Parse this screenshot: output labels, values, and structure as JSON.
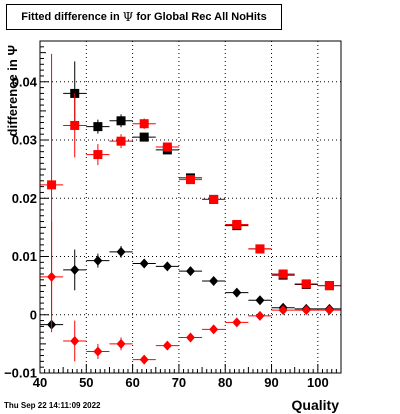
{
  "title": {
    "prefix": "Fitted difference in ",
    "symbol": "Ψ",
    "suffix": " for Global Rec All NoHits"
  },
  "datestamp": "Thu Sep 22 14:11:09 2022",
  "chart_data": {
    "type": "scatter",
    "xlabel": "Quality",
    "ylabel": "difference in Ψ",
    "xlim": [
      40,
      105
    ],
    "ylim": [
      -0.01,
      0.047
    ],
    "xticks": [
      40,
      50,
      60,
      70,
      80,
      90,
      100
    ],
    "yticks": [
      -0.01,
      0,
      0.01,
      0.02,
      0.03,
      0.04
    ],
    "ytick_labels": [
      "−0.01",
      "0",
      "0.01",
      "0.02",
      "0.03",
      "0.04"
    ],
    "grid": true,
    "bin_halfwidth": 2.5,
    "series": [
      {
        "marker": "square",
        "color": "#000000",
        "points": [
          {
            "x": 47.5,
            "y": 0.038,
            "err": 0.0055
          },
          {
            "x": 52.5,
            "y": 0.0323,
            "err": 0.0012
          },
          {
            "x": 57.5,
            "y": 0.0333,
            "err": 0.0011
          },
          {
            "x": 62.5,
            "y": 0.0305,
            "err": 0.0007
          },
          {
            "x": 67.5,
            "y": 0.0283,
            "err": 0.0005
          },
          {
            "x": 72.5,
            "y": 0.0235,
            "err": 0.0004
          },
          {
            "x": 77.5,
            "y": 0.0198,
            "err": 0.0003
          },
          {
            "x": 82.5,
            "y": 0.0153,
            "err": 0.0003
          },
          {
            "x": 87.5,
            "y": 0.0113,
            "err": 0.0002
          },
          {
            "x": 92.5,
            "y": 0.0068,
            "err": 0.0002
          },
          {
            "x": 97.5,
            "y": 0.0052,
            "err": 0.0002
          },
          {
            "x": 102.5,
            "y": 0.005,
            "err": 0.0002
          }
        ]
      },
      {
        "marker": "square",
        "color": "#ff0000",
        "points": [
          {
            "x": 42.5,
            "y": 0.0223,
            "err": 0.0225
          },
          {
            "x": 47.5,
            "y": 0.0325,
            "err": 0.0055
          },
          {
            "x": 52.5,
            "y": 0.0275,
            "err": 0.0018
          },
          {
            "x": 57.5,
            "y": 0.0298,
            "err": 0.0012
          },
          {
            "x": 62.5,
            "y": 0.0328,
            "err": 0.0009
          },
          {
            "x": 67.5,
            "y": 0.0288,
            "err": 0.0006
          },
          {
            "x": 72.5,
            "y": 0.0232,
            "err": 0.0005
          },
          {
            "x": 77.5,
            "y": 0.0198,
            "err": 0.0004
          },
          {
            "x": 82.5,
            "y": 0.0155,
            "err": 0.0003
          },
          {
            "x": 87.5,
            "y": 0.0113,
            "err": 0.0003
          },
          {
            "x": 92.5,
            "y": 0.007,
            "err": 0.0003
          },
          {
            "x": 97.5,
            "y": 0.0053,
            "err": 0.0002
          },
          {
            "x": 102.5,
            "y": 0.005,
            "err": 0.0002
          }
        ]
      },
      {
        "marker": "diamond",
        "color": "#000000",
        "points": [
          {
            "x": 42.5,
            "y": -0.0017,
            "err": 0.0
          },
          {
            "x": 47.5,
            "y": 0.0077,
            "err": 0.0035
          },
          {
            "x": 52.5,
            "y": 0.0093,
            "err": 0.0012
          },
          {
            "x": 57.5,
            "y": 0.0108,
            "err": 0.001
          },
          {
            "x": 62.5,
            "y": 0.0088,
            "err": 0.0006
          },
          {
            "x": 67.5,
            "y": 0.0083,
            "err": 0.0005
          },
          {
            "x": 72.5,
            "y": 0.0075,
            "err": 0.0004
          },
          {
            "x": 77.5,
            "y": 0.0058,
            "err": 0.0003
          },
          {
            "x": 82.5,
            "y": 0.0038,
            "err": 0.0003
          },
          {
            "x": 87.5,
            "y": 0.0025,
            "err": 0.0002
          },
          {
            "x": 92.5,
            "y": 0.0012,
            "err": 0.0002
          },
          {
            "x": 97.5,
            "y": 0.001,
            "err": 0.0002
          },
          {
            "x": 102.5,
            "y": 0.001,
            "err": 0.0002
          }
        ]
      },
      {
        "marker": "diamond",
        "color": "#ff0000",
        "points": [
          {
            "x": 42.5,
            "y": 0.0065,
            "err": 0.0095
          },
          {
            "x": 47.5,
            "y": -0.0045,
            "err": 0.0035
          },
          {
            "x": 52.5,
            "y": -0.0063,
            "err": 0.0013
          },
          {
            "x": 57.5,
            "y": -0.005,
            "err": 0.0011
          },
          {
            "x": 62.5,
            "y": -0.0077,
            "err": 0.0008
          },
          {
            "x": 67.5,
            "y": -0.0053,
            "err": 0.0005
          },
          {
            "x": 72.5,
            "y": -0.0039,
            "err": 0.0004
          },
          {
            "x": 77.5,
            "y": -0.0025,
            "err": 0.0003
          },
          {
            "x": 82.5,
            "y": -0.0013,
            "err": 0.0003
          },
          {
            "x": 87.5,
            "y": -0.0002,
            "err": 0.0003
          },
          {
            "x": 92.5,
            "y": 0.0008,
            "err": 0.0002
          },
          {
            "x": 97.5,
            "y": 0.0008,
            "err": 0.0002
          },
          {
            "x": 102.5,
            "y": 0.0008,
            "err": 0.0002
          }
        ]
      }
    ]
  }
}
